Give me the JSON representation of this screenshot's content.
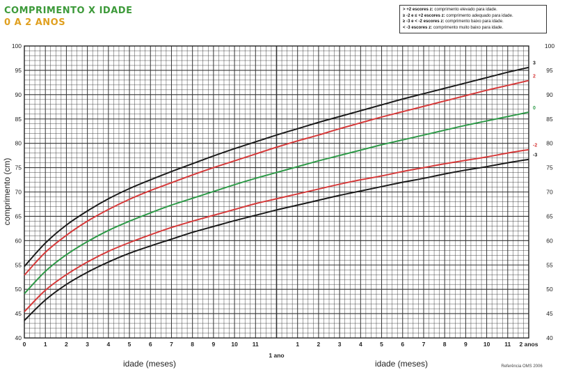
{
  "title_line1": "COMPRIMENTO X IDADE",
  "title_line2": "0 A 2 ANOS",
  "legend": [
    {
      "key": "> +2 escores z:",
      "text": "comprimento elevado para idade."
    },
    {
      "key": "≥ -2 e ≤ +2 escores z:",
      "text": "comprimento adequado para idade."
    },
    {
      "key": "≥ -3 e < -2 escores z:",
      "text": "comprimento baixo para idade."
    },
    {
      "key": "< -3 escores z:",
      "text": "comprimento muito baixo para idade."
    }
  ],
  "reference": "Referência OMS 2006",
  "colors": {
    "z3": "#1a1a1a",
    "z2": "#d63a3a",
    "z0": "#2e9a48",
    "zm2": "#d63a3a",
    "zm3": "#1a1a1a",
    "grid": "#333333"
  },
  "chart_data": {
    "type": "line",
    "xlabel": "idade (meses)",
    "ylabel": "comprimento (cm)",
    "xlim": [
      0,
      24
    ],
    "ylim": [
      40,
      100
    ],
    "x_ticks_year1": [
      "0",
      "1",
      "2",
      "3",
      "4",
      "5",
      "6",
      "7",
      "8",
      "9",
      "10",
      "11"
    ],
    "x_ticks_year2": [
      "1",
      "2",
      "3",
      "4",
      "5",
      "6",
      "7",
      "8",
      "9",
      "10",
      "11"
    ],
    "year_labels": [
      "1 ano",
      "2 anos"
    ],
    "y_ticks": [
      40,
      45,
      50,
      55,
      60,
      65,
      70,
      75,
      80,
      85,
      90,
      95,
      100
    ],
    "grid": true,
    "x": [
      0,
      1,
      2,
      3,
      4,
      5,
      6,
      7,
      8,
      9,
      10,
      11,
      12,
      13,
      14,
      15,
      16,
      17,
      18,
      19,
      20,
      21,
      22,
      23,
      24
    ],
    "series": [
      {
        "name": "3",
        "color": "#1a1a1a",
        "values": [
          54.7,
          59.5,
          63.2,
          66.1,
          68.6,
          70.7,
          72.5,
          74.2,
          75.8,
          77.4,
          78.9,
          80.3,
          81.7,
          83.0,
          84.3,
          85.5,
          86.7,
          87.9,
          89.1,
          90.2,
          91.3,
          92.4,
          93.5,
          94.6,
          95.6
        ]
      },
      {
        "name": "2",
        "color": "#d63a3a",
        "values": [
          52.9,
          57.6,
          61.1,
          64.0,
          66.4,
          68.5,
          70.3,
          71.9,
          73.5,
          75.0,
          76.4,
          77.8,
          79.2,
          80.5,
          81.7,
          83.0,
          84.2,
          85.4,
          86.5,
          87.6,
          88.7,
          89.8,
          90.9,
          91.9,
          92.9
        ]
      },
      {
        "name": "0",
        "color": "#2e9a48",
        "values": [
          49.1,
          53.7,
          57.1,
          59.8,
          62.1,
          64.0,
          65.7,
          67.3,
          68.7,
          70.1,
          71.5,
          72.8,
          74.0,
          75.2,
          76.4,
          77.5,
          78.6,
          79.7,
          80.7,
          81.7,
          82.7,
          83.7,
          84.6,
          85.5,
          86.4
        ]
      },
      {
        "name": "-2",
        "color": "#d63a3a",
        "values": [
          45.4,
          49.8,
          53.0,
          55.6,
          57.8,
          59.6,
          61.2,
          62.7,
          64.0,
          65.2,
          66.4,
          67.6,
          68.6,
          69.6,
          70.6,
          71.6,
          72.5,
          73.3,
          74.2,
          75.0,
          75.8,
          76.5,
          77.2,
          78.0,
          78.7
        ]
      },
      {
        "name": "-3",
        "color": "#1a1a1a",
        "values": [
          43.6,
          47.8,
          51.0,
          53.5,
          55.6,
          57.4,
          58.9,
          60.3,
          61.7,
          62.9,
          64.1,
          65.2,
          66.3,
          67.3,
          68.3,
          69.3,
          70.2,
          71.1,
          72.0,
          72.8,
          73.7,
          74.5,
          75.2,
          76.0,
          76.7
        ]
      }
    ]
  }
}
